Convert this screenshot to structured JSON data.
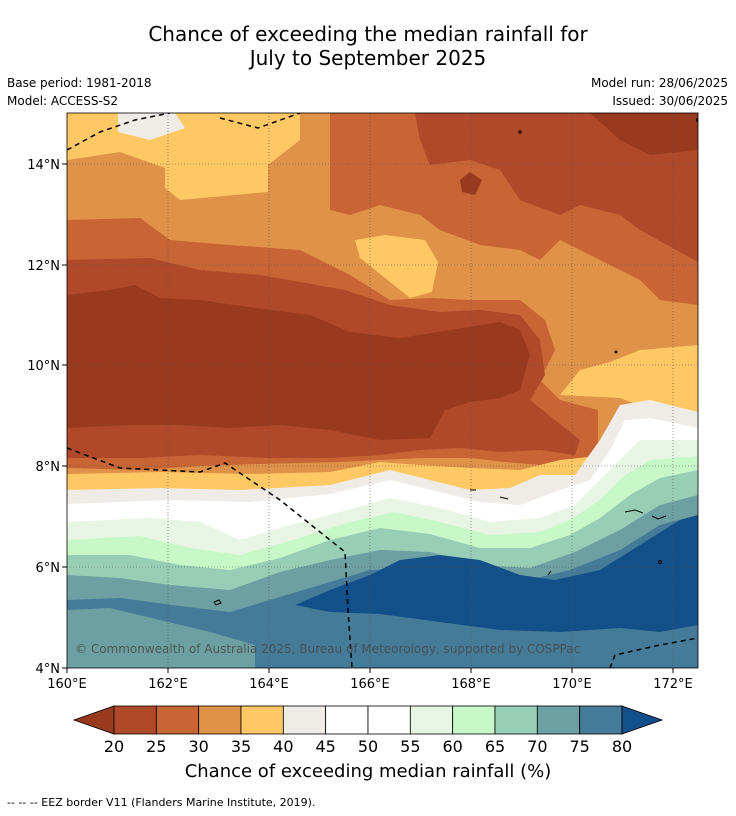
{
  "title_line1": "Chance of exceeding the median rainfall for",
  "title_line2": "July to September 2025",
  "base_period": "Base period: 1981-2018",
  "model": "Model: ACCESS-S2",
  "model_run": "Model run: 28/06/2025",
  "issued": "Issued: 30/06/2025",
  "watermark": "© Commonwealth of Australia 2025, Bureau of Meteorology, supported by COSPPac",
  "lat_labels": [
    "14°N",
    "12°N",
    "10°N",
    "8°N",
    "6°N",
    "4°N"
  ],
  "lon_labels": [
    "160°E",
    "162°E",
    "164°E",
    "166°E",
    "168°E",
    "170°E",
    "172°E"
  ],
  "colorbar": {
    "ticks": [
      "20",
      "25",
      "30",
      "35",
      "40",
      "45",
      "50",
      "55",
      "60",
      "65",
      "70",
      "75",
      "80"
    ],
    "colors": [
      "#993a1e",
      "#b0482a",
      "#c96535",
      "#e09248",
      "#fec865",
      "#efebe6",
      "#ffffff",
      "#ffffff",
      "#e8f5e4",
      "#c8f8c8",
      "#99ceb6",
      "#6da0a2",
      "#447b98",
      "#134f88"
    ],
    "label": "Chance of exceeding median rainfall (%)"
  },
  "footnote": "--  --  -- EEZ border V11 (Flanders Marine Institute, 2019)."
}
